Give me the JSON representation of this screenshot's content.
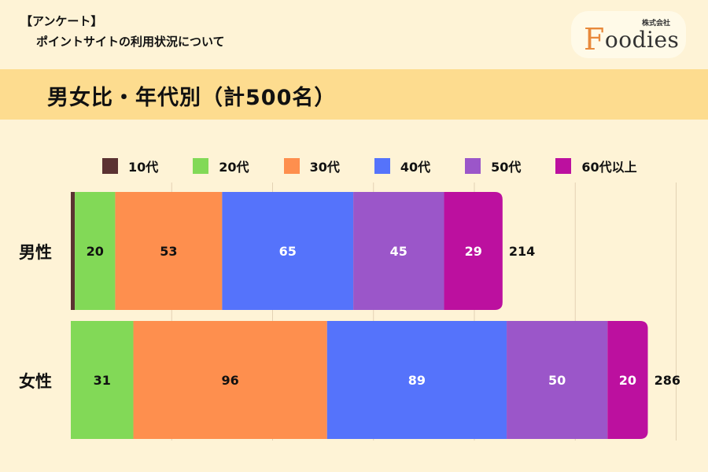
{
  "header": {
    "tag": "【アンケート】",
    "subtitle": "ポイントサイトの利用状況について"
  },
  "logo": {
    "corp": "株式会社",
    "initial": "F",
    "rest": "oodies"
  },
  "title": "男女比・年代別（計500名）",
  "colors": {
    "background": "#fef3d6",
    "title_band": "#fddc8f"
  },
  "chart_data": {
    "type": "bar",
    "orientation": "horizontal",
    "stacked": true,
    "title": "男女比・年代別（計500名）",
    "categories": [
      "男性",
      "女性"
    ],
    "totals": [
      214,
      286
    ],
    "legend_position": "top",
    "grid": true,
    "xlim": [
      0,
      300
    ],
    "series": [
      {
        "name": "10代",
        "values": [
          2,
          0
        ],
        "color": "#5b3232",
        "label_color": "#111111"
      },
      {
        "name": "20代",
        "values": [
          20,
          31
        ],
        "color": "#82d957",
        "label_color": "#111111"
      },
      {
        "name": "30代",
        "values": [
          53,
          96
        ],
        "color": "#fe8f4e",
        "label_color": "#111111"
      },
      {
        "name": "40代",
        "values": [
          65,
          89
        ],
        "color": "#5573fb",
        "label_color": "#ffffff"
      },
      {
        "name": "50代",
        "values": [
          45,
          50
        ],
        "color": "#9b56c9",
        "label_color": "#ffffff"
      },
      {
        "name": "60代以上",
        "values": [
          29,
          20
        ],
        "color": "#bc109f",
        "label_color": "#ffffff"
      }
    ]
  }
}
